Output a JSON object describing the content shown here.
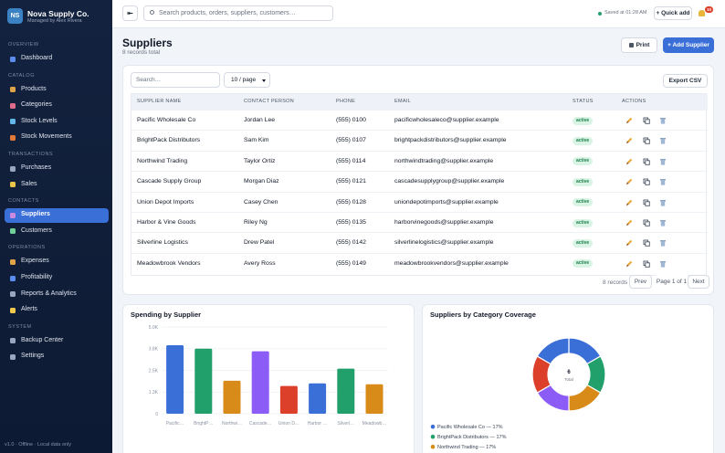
{
  "sidebar": {
    "logo": "NS",
    "brand": "Nova Supply Co.",
    "subtitle": "Managed by Alex Rivera",
    "sections": [
      {
        "title": "OVERVIEW",
        "items": [
          {
            "label": "Dashboard"
          }
        ]
      },
      {
        "title": "CATALOG",
        "items": [
          {
            "label": "Products"
          },
          {
            "label": "Categories"
          },
          {
            "label": "Stock Levels"
          },
          {
            "label": "Stock Movements"
          }
        ]
      },
      {
        "title": "TRANSACTIONS",
        "items": [
          {
            "label": "Purchases"
          },
          {
            "label": "Sales"
          }
        ]
      },
      {
        "title": "CONTACTS",
        "items": [
          {
            "label": "Suppliers",
            "active": true
          },
          {
            "label": "Customers"
          }
        ]
      },
      {
        "title": "OPERATIONS",
        "items": [
          {
            "label": "Expenses"
          },
          {
            "label": "Profitability"
          },
          {
            "label": "Reports & Analytics"
          },
          {
            "label": "Alerts"
          }
        ]
      },
      {
        "title": "SYSTEM",
        "items": [
          {
            "label": "Backup Center"
          },
          {
            "label": "Settings"
          }
        ]
      }
    ],
    "footer": "v1.0 · Offline · Local data only"
  },
  "topbar": {
    "toggle": "⇤",
    "search_placeholder": "Search products, orders, suppliers, customers…",
    "saved": "Saved at 01:28 AM",
    "quick_add": "+ Quick add",
    "notifications": "10"
  },
  "page": {
    "title": "Suppliers",
    "subtitle": "8 records total",
    "print": "Print",
    "add": "+ Add Supplier"
  },
  "table": {
    "search_placeholder": "Search…",
    "page_size": "10 / page",
    "export": "Export CSV",
    "columns": [
      "SUPPLIER NAME",
      "CONTACT PERSON",
      "PHONE",
      "EMAIL",
      "STATUS",
      "ACTIONS"
    ],
    "rows": [
      [
        "Pacific Wholesale Co",
        "Jordan Lee",
        "(555) 0100",
        "pacificwholesaleco@supplier.example",
        "active"
      ],
      [
        "BrightPack Distributors",
        "Sam Kim",
        "(555) 0107",
        "brightpackdistributors@supplier.example",
        "active"
      ],
      [
        "Northwind Trading",
        "Taylor Ortiz",
        "(555) 0114",
        "northwindtrading@supplier.example",
        "active"
      ],
      [
        "Cascade Supply Group",
        "Morgan Diaz",
        "(555) 0121",
        "cascadesupplygroup@supplier.example",
        "active"
      ],
      [
        "Union Depot Imports",
        "Casey Chen",
        "(555) 0128",
        "uniondepotimports@supplier.example",
        "active"
      ],
      [
        "Harbor & Vine Goods",
        "Riley Ng",
        "(555) 0135",
        "harborvinegoods@supplier.example",
        "active"
      ],
      [
        "Silverline Logistics",
        "Drew Patel",
        "(555) 0142",
        "silverlinelogistics@supplier.example",
        "active"
      ],
      [
        "Meadowbrook Vendors",
        "Avery Ross",
        "(555) 0149",
        "meadowbrookvendors@supplier.example",
        "active"
      ]
    ],
    "footer": {
      "count": "8 records",
      "prev": "Prev",
      "page": "Page 1 of 1",
      "next": "Next"
    }
  },
  "chart_data": [
    {
      "type": "bar",
      "title": "Spending by Supplier",
      "categories": [
        "Pacific…",
        "BrightP…",
        "Northwi…",
        "Cascade…",
        "Union D…",
        "Harbor …",
        "Silverl…",
        "Meadowb…"
      ],
      "values": [
        3950,
        3750,
        1900,
        3600,
        1600,
        1750,
        2600,
        1700
      ],
      "colors": [
        "#3b6fd8",
        "#22a06b",
        "#d98b1a",
        "#8b5cf6",
        "#dc3f2a",
        "#3b6fd8",
        "#22a06b",
        "#d98b1a"
      ],
      "ylim": [
        0,
        5000
      ],
      "yticks": [
        0,
        {
          "value": 1250,
          "label": "1.3K"
        },
        {
          "value": 2500,
          "label": "2.5K"
        },
        {
          "value": 3750,
          "label": "3.8K"
        },
        {
          "value": 5000,
          "label": "5.0K"
        }
      ],
      "grid": true
    },
    {
      "type": "pie",
      "donut": true,
      "title": "Suppliers by Category Coverage",
      "categories": [
        "Pacific Wholesale Co",
        "BrightPack Distributors",
        "Northwind Trading",
        null,
        null,
        null
      ],
      "values": [
        17,
        17,
        17,
        17,
        17,
        17
      ],
      "colors": [
        "#3b6fd8",
        "#22a06b",
        "#d98b1a",
        "#8b5cf6",
        "#dc3f2a",
        "#3b6fd8"
      ],
      "legend": [
        "Pacific Wholesale Co — 17%",
        "BrightPack Distributors — 17%",
        "Northwind Trading — 17%"
      ],
      "total": "6",
      "total_label": "Total"
    }
  ]
}
